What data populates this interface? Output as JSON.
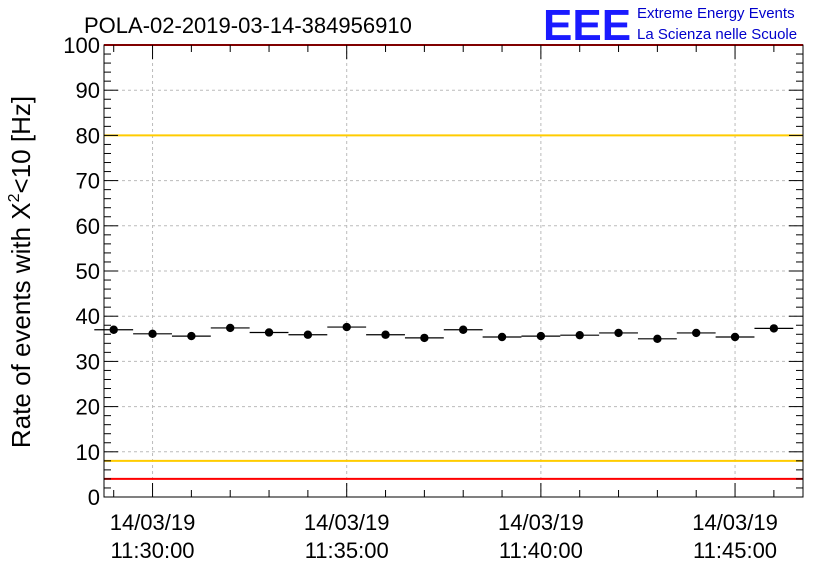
{
  "title": "POLA-02-2019-03-14-384956910",
  "logo": {
    "letters": "EEE",
    "line1": "Extreme Energy Events",
    "line2": "La Scienza nelle Scuole"
  },
  "colors": {
    "red_threshold": "#ff0000",
    "yellow_threshold": "#ffcc00",
    "markers": "#000000",
    "grid": "#bbbbbb",
    "logo": "#1a1aff"
  },
  "chart_data": {
    "type": "scatter",
    "title": "POLA-02-2019-03-14-384956910",
    "ylabel_main": "Rate of events with X",
    "ylabel_sup": "2",
    "ylabel_tail": "<10 [Hz]",
    "xlabel": "",
    "ylim": [
      0,
      100
    ],
    "yticks": [
      0,
      10,
      20,
      30,
      40,
      50,
      60,
      70,
      80,
      90,
      100
    ],
    "xlim": [
      "11:28:45",
      "11:46:45"
    ],
    "xticks": [
      {
        "time": "11:30:00",
        "date": "14/03/19",
        "label": "11:30:00"
      },
      {
        "time": "11:35:00",
        "date": "14/03/19",
        "label": "11:35:00"
      },
      {
        "time": "11:40:00",
        "date": "14/03/19",
        "label": "11:40:00"
      },
      {
        "time": "11:45:00",
        "date": "14/03/19",
        "label": "11:45:00"
      }
    ],
    "grid": true,
    "bin_width_seconds": 60,
    "thresholds": [
      {
        "value": 80,
        "color": "#ffcc00"
      },
      {
        "value": 8,
        "color": "#ffcc00"
      },
      {
        "value": 4,
        "color": "#ff0000"
      },
      {
        "value": 100,
        "color": "#ff0000"
      }
    ],
    "series": [
      {
        "x": [
          "11:29:00",
          "11:30:00",
          "11:31:00",
          "11:32:00",
          "11:33:00",
          "11:34:00",
          "11:35:00",
          "11:36:00",
          "11:37:00",
          "11:38:00",
          "11:39:00",
          "11:40:00",
          "11:41:00",
          "11:42:00",
          "11:43:00",
          "11:44:00",
          "11:45:00",
          "11:46:00"
        ],
        "y": [
          37.0,
          36.1,
          35.6,
          37.4,
          36.4,
          35.9,
          37.6,
          35.9,
          35.2,
          37.0,
          35.4,
          35.6,
          35.8,
          36.3,
          35.0,
          36.3,
          35.4,
          37.3
        ]
      }
    ]
  }
}
